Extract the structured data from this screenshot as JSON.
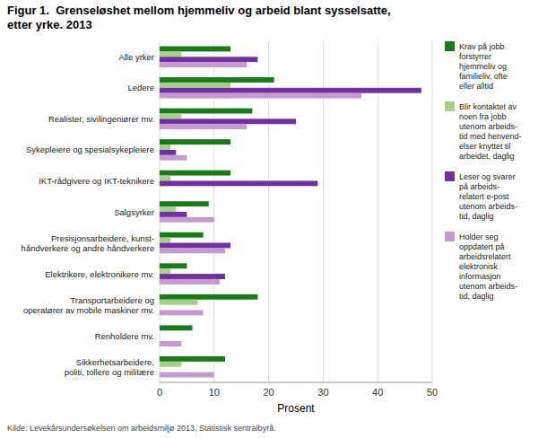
{
  "chart_data": {
    "type": "bar",
    "orientation": "horizontal",
    "title": "Figur 1.  Grenseløshet mellom hjemmeliv og arbeid blant sysselsatte,\netter yrke. 2013",
    "xlabel": "Prosent",
    "annotations": [
      "Kilde: Levekårsundersøkelsen om arbeidsmiljø 2013, Statistisk sentralbyrå."
    ],
    "categories": [
      "Alle yrker",
      "Ledere",
      "Realister, sivilingeniører mv.",
      "Sykepleiere og spesialsykepleiere",
      "IKT-rådgivere og IKT-teknikere",
      "Salgsyrker",
      "Presisjonsarbeidere, kunst-\nhåndverkere og andre håndverkere",
      "Elektrikere, elektronikere mv.",
      "Transportarbeidere og\noperatører av mobile maskiner mv.",
      "Renholdere mv.",
      "Sikkerhetsarbeidere,\npoliti, tollere og militære"
    ],
    "series": [
      {
        "name": "Krav på jobb\nforstyrrer\nhjemmeliv og\nfamilieliv, ofte\neller alltid",
        "color": "#1a7a1a",
        "values": [
          13,
          21,
          17,
          13,
          13,
          9,
          8,
          5,
          18,
          6,
          12
        ]
      },
      {
        "name": "Blir kontaktet av\nnoen fra jobb\nutenom arbeids-\ntid med henvend-\nelser knyttet til\narbeidet, daglig",
        "color": "#a8d08d",
        "values": [
          4,
          13,
          4,
          2,
          2,
          3,
          2,
          2,
          7,
          0,
          4
        ]
      },
      {
        "name": "Leser og svarer\npå arbeids-\nrelatert e-post\nutenom arbeids-\ntid, daglig",
        "color": "#7030a0",
        "values": [
          18,
          48,
          25,
          3,
          29,
          5,
          13,
          12,
          0,
          0,
          0
        ]
      },
      {
        "name": "Holder seg\noppdatert på\narbeidsrelatert\nelektronisk\ninformasjon\nutenom arbeids-\ntid, daglig",
        "color": "#c699d1",
        "values": [
          16,
          37,
          16,
          5,
          0,
          10,
          12,
          11,
          8,
          4,
          10
        ]
      }
    ],
    "xlim": [
      0,
      50
    ],
    "xticks": [
      0,
      10,
      20,
      30,
      40,
      50
    ],
    "grid": true,
    "legend": "right"
  }
}
